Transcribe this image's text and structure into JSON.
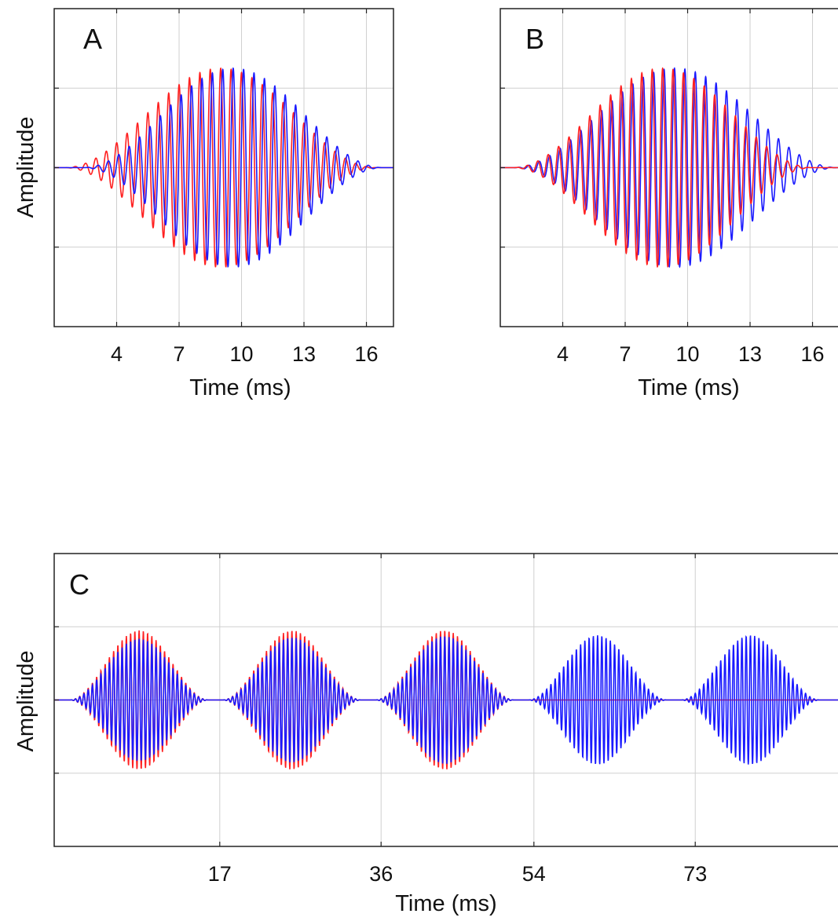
{
  "chart_data": [
    {
      "type": "line",
      "panel_label": "A",
      "xlabel": "Time (ms)",
      "ylabel": "Amplitude",
      "xlim": [
        1,
        17.3
      ],
      "ylim": [
        -2,
        2
      ],
      "xticks": [
        4,
        7,
        10,
        13,
        16
      ],
      "yticks": [
        -1,
        0,
        1
      ],
      "grid": true,
      "series": [
        {
          "color": "#ff2020",
          "envelope_center_ms": 9.0,
          "envelope_halfwidth_ms": 7.5,
          "amplitude": 1.25,
          "carrier_khz": 2.0,
          "phase": 0.0
        },
        {
          "color": "#1a1aff",
          "envelope_center_ms": 9.6,
          "envelope_halfwidth_ms": 7.2,
          "amplitude": 1.25,
          "carrier_khz": 2.0,
          "phase": 0.0
        }
      ]
    },
    {
      "type": "line",
      "panel_label": "B",
      "xlabel": "Time (ms)",
      "ylabel": "",
      "xlim": [
        1,
        17.3
      ],
      "ylim": [
        -2,
        2
      ],
      "xticks": [
        4,
        7,
        10,
        13,
        16
      ],
      "yticks": [
        -1,
        0,
        1
      ],
      "grid": true,
      "series": [
        {
          "color": "#1a1aff",
          "envelope_center_ms": 9.4,
          "envelope_halfwidth_ms": 7.8,
          "amplitude": 1.25,
          "carrier_khz": 2.0,
          "phase": 0.4
        },
        {
          "color": "#ff2020",
          "envelope_center_ms": 8.8,
          "envelope_halfwidth_ms": 7.2,
          "amplitude": 1.25,
          "carrier_khz": 2.0,
          "phase": 0.0
        }
      ]
    },
    {
      "type": "line",
      "panel_label": "C",
      "xlabel": "Time (ms)",
      "ylabel": "Amplitude",
      "xlim": [
        -2.5,
        90
      ],
      "ylim": [
        -2,
        2
      ],
      "xticks": [
        17,
        36,
        54,
        73
      ],
      "yticks": [
        -1,
        0,
        1
      ],
      "grid": true,
      "series": [
        {
          "color": "#ff2020",
          "bursts_center_ms": [
            7.5,
            25.5,
            43.5
          ],
          "burst_halfwidth_ms": 8.2,
          "amplitude": 0.95,
          "carrier_khz": 2.0,
          "phase": 0.0
        },
        {
          "color": "#1a1aff",
          "bursts_center_ms": [
            7.5,
            25.5,
            43.5,
            61.5,
            79.5
          ],
          "burst_halfwidth_ms": 8.2,
          "amplitude": 0.95,
          "carrier_khz": 2.0,
          "phase": 0.0,
          "amplitude_scale": [
            0.88,
            0.9,
            0.92,
            0.93,
            0.93
          ]
        }
      ]
    }
  ]
}
